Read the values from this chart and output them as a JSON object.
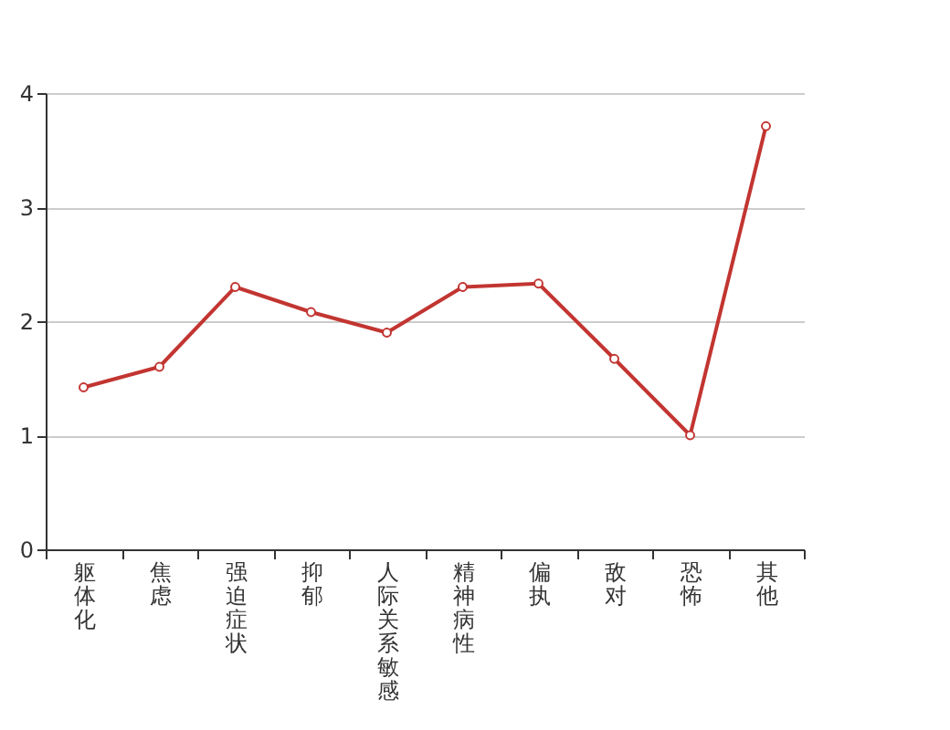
{
  "chart_data": {
    "type": "line",
    "categories": [
      "躯体化",
      "焦虑",
      "强迫症状",
      "抑郁",
      "人际关系敏感",
      "精神病性",
      "偏执",
      "敌对",
      "恐怖",
      "其他"
    ],
    "series": [
      {
        "color": "#c23531",
        "values": [
          1.42,
          1.6,
          2.3,
          2.08,
          1.9,
          2.3,
          2.33,
          1.67,
          1.0,
          3.71
        ]
      }
    ],
    "ylim": [
      0,
      4
    ],
    "yticks": [
      0,
      1,
      2,
      3,
      4
    ],
    "grid": "y",
    "marker": "circle",
    "line_style": "solid"
  }
}
